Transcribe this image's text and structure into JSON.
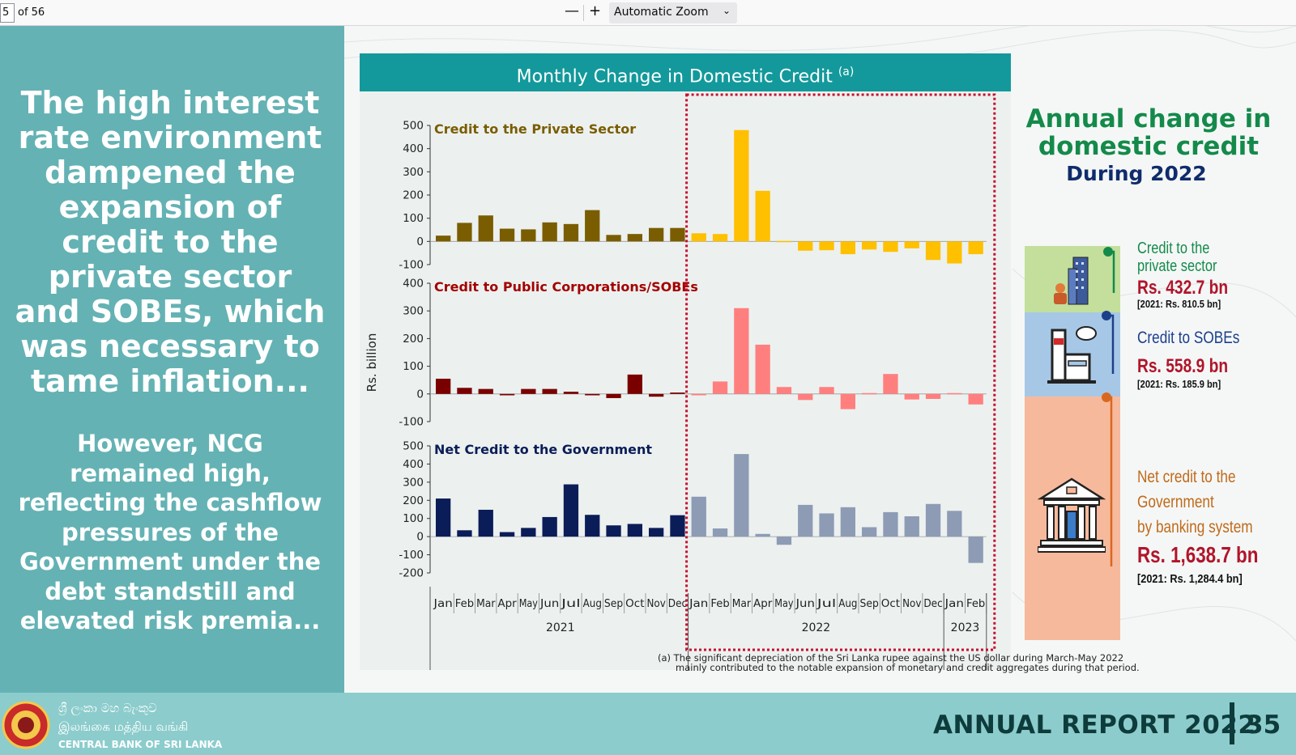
{
  "toolbar": {
    "page_number": "5",
    "page_total": "of 56",
    "zoom_out": "—",
    "zoom_in": "+",
    "zoom_label": "Automatic Zoom"
  },
  "left_panel": {
    "heading": "The high interest rate environment dampened the expansion of credit to the private sector and SOBEs, which was necessary to tame inflation...",
    "subheading": "However, NCG remained high, reflecting the cashflow pressures of the Government under the debt standstill and elevated risk premia..."
  },
  "footer": {
    "bank_name_sinhala": "ශ්‍රී ලංකා මහ බැංකුව",
    "bank_name_tamil": "இலங்கை மத்திய வங்கி",
    "bank_name_english": "CENTRAL BANK OF SRI LANKA",
    "report_title": "ANNUAL REPORT 2022",
    "page_number": "35"
  },
  "chart_header": {
    "title": "Monthly Change in Domestic Credit",
    "sup": "(a)"
  },
  "footnote": {
    "line1": "(a)  The significant depreciation of the Sri Lanka rupee against the US dollar during March-May 2022",
    "line2": "mainly contributed to the notable expansion of monetary and credit aggregates during that period."
  },
  "chart_data": {
    "type": "bar",
    "ylabel": "Rs. billion",
    "categories": [
      "Jan",
      "Feb",
      "Mar",
      "Apr",
      "May",
      "Jun",
      "Jul",
      "Aug",
      "Sep",
      "Oct",
      "Nov",
      "Dec",
      "Jan",
      "Feb",
      "Mar",
      "Apr",
      "May",
      "Jun",
      "Jul",
      "Aug",
      "Sep",
      "Oct",
      "Nov",
      "Dec",
      "Jan",
      "Feb"
    ],
    "year_groups": [
      {
        "label": "2021",
        "start": 0,
        "end": 11
      },
      {
        "label": "2022",
        "start": 12,
        "end": 23
      },
      {
        "label": "2023",
        "start": 24,
        "end": 25
      }
    ],
    "highlight": {
      "start": 12,
      "end": 25
    },
    "panels": [
      {
        "name": "Credit to the Private Sector",
        "title_color": "#7a5d00",
        "color": "#7a5d00",
        "highlight_color": "#ffc000",
        "ylim": [
          -100,
          500
        ],
        "yticks": [
          500,
          400,
          300,
          200,
          100,
          0,
          -100
        ],
        "values": [
          25,
          80,
          112,
          55,
          52,
          82,
          75,
          135,
          28,
          32,
          58,
          58,
          35,
          32,
          480,
          218,
          2,
          -40,
          -38,
          -55,
          -35,
          -45,
          -30,
          -80,
          -95,
          -55
        ]
      },
      {
        "name": "Credit to Public Corporations/SOBEs",
        "title_color": "#a30000",
        "color": "#7a0000",
        "highlight_color": "#ff7f7f",
        "ylim": [
          -100,
          400
        ],
        "yticks": [
          400,
          300,
          200,
          100,
          0,
          -100
        ],
        "values": [
          55,
          22,
          18,
          -5,
          18,
          18,
          8,
          -5,
          -15,
          70,
          -10,
          5,
          -5,
          45,
          310,
          178,
          25,
          -22,
          25,
          -55,
          3,
          72,
          -20,
          -18,
          3,
          -38
        ]
      },
      {
        "name": "Net Credit to the Government",
        "title_color": "#0b1d58",
        "color": "#0b1d58",
        "highlight_color": "#8d9bb5",
        "ylim": [
          -200,
          500
        ],
        "yticks": [
          500,
          400,
          300,
          200,
          100,
          0,
          -100,
          -200
        ],
        "values": [
          210,
          35,
          148,
          25,
          48,
          108,
          288,
          120,
          62,
          70,
          48,
          118,
          220,
          45,
          455,
          15,
          -45,
          175,
          128,
          162,
          52,
          135,
          112,
          180,
          142,
          -145
        ]
      }
    ]
  },
  "right_panel": {
    "title": "Annual change in domestic credit",
    "subtitle": "During 2022",
    "items": [
      {
        "label_line1": "Credit to the",
        "label_line2": "private sector",
        "value": "Rs. 432.7 bn",
        "prev": "[2021: Rs. 810.5 bn]",
        "color": "#148a4a"
      },
      {
        "label_line1": "Credit to SOBEs",
        "label_line2": "",
        "value": "Rs. 558.9 bn",
        "prev": "[2021: Rs. 185.9 bn]",
        "color": "#1c3f8c"
      },
      {
        "label_line1": "Net credit to the",
        "label_line2": "Government",
        "label_line3": "by banking system",
        "value": "Rs. 1,638.7 bn",
        "prev": "[2021: Rs. 1,284.4 bn]",
        "color": "#c06a1a"
      }
    ]
  }
}
